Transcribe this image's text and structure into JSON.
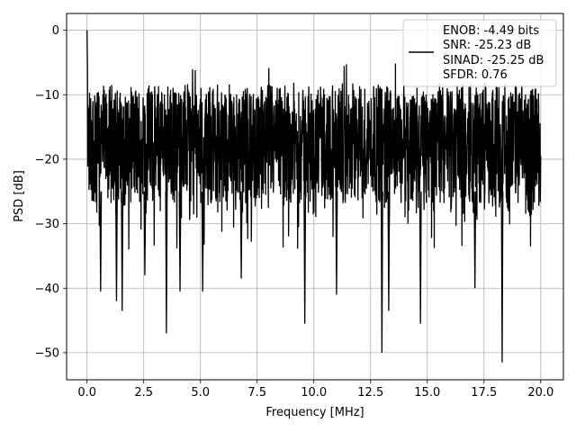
{
  "chart_data": {
    "type": "line",
    "title": "",
    "xlabel": "Frequency [MHz]",
    "ylabel": "PSD [dB]",
    "xlim": [
      -0.9,
      21.0
    ],
    "ylim": [
      -54.2,
      2.6
    ],
    "xticks": [
      0.0,
      2.5,
      5.0,
      7.5,
      10.0,
      12.5,
      15.0,
      17.5,
      20.0
    ],
    "xtick_labels": [
      "0.0",
      "2.5",
      "5.0",
      "7.5",
      "10.0",
      "12.5",
      "15.0",
      "17.5",
      "20.0"
    ],
    "yticks": [
      0,
      -10,
      -20,
      -30,
      -40,
      -50
    ],
    "ytick_labels": [
      "0",
      "−10",
      "−20",
      "−30",
      "−40",
      "−50"
    ],
    "grid": true,
    "legend": {
      "placement": "top-right",
      "entries": [
        "ENOB: -4.49 bits",
        "SNR: -25.23 dB",
        "SINAD: -25.25 dB",
        "SFDR: 0.76"
      ]
    },
    "series": [
      {
        "color": "#000000",
        "x_range": [
          0.0,
          20.0
        ],
        "points": 2000,
        "peak": {
          "x": 0.0,
          "y": 0.0
        },
        "typical_band": [
          -26,
          -9
        ],
        "deep_nulls": [
          {
            "x": 0.6,
            "y": -40.5
          },
          {
            "x": 1.3,
            "y": -42.0
          },
          {
            "x": 1.55,
            "y": -43.5
          },
          {
            "x": 2.55,
            "y": -38.0
          },
          {
            "x": 3.5,
            "y": -47.0
          },
          {
            "x": 4.1,
            "y": -40.5
          },
          {
            "x": 5.1,
            "y": -40.5
          },
          {
            "x": 6.8,
            "y": -38.5
          },
          {
            "x": 9.6,
            "y": -45.5
          },
          {
            "x": 11.0,
            "y": -41.0
          },
          {
            "x": 13.0,
            "y": -50.0
          },
          {
            "x": 13.3,
            "y": -43.5
          },
          {
            "x": 14.7,
            "y": -45.5
          },
          {
            "x": 17.1,
            "y": -40.0
          },
          {
            "x": 18.3,
            "y": -51.5
          }
        ]
      }
    ]
  }
}
